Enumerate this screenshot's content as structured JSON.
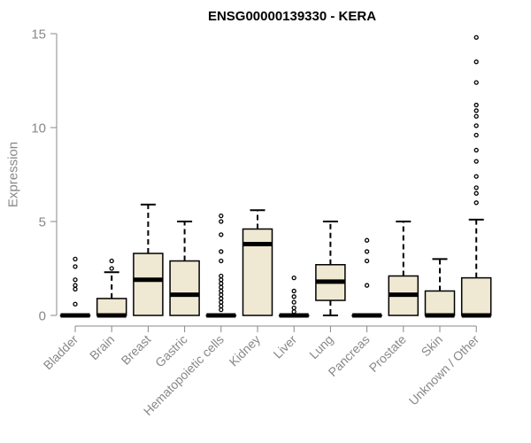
{
  "chart_data": {
    "type": "boxplot",
    "title": "ENSG00000139330 - KERA",
    "xlabel": "",
    "ylabel": "Expression",
    "ylim": [
      0,
      15
    ],
    "yticks": [
      0,
      5,
      10,
      15
    ],
    "grid": false,
    "box_fill": "#efe8d2",
    "categories": [
      {
        "name": "Bladder",
        "q1": 0,
        "median": 0,
        "q3": 0,
        "whisker_low": 0,
        "whisker_high": 0,
        "outliers": [
          0.6,
          1.4,
          1.6,
          1.9,
          2.6,
          3.0
        ]
      },
      {
        "name": "Brain",
        "q1": 0,
        "median": 0,
        "q3": 0.9,
        "whisker_low": 0,
        "whisker_high": 2.3,
        "outliers": [
          2.5,
          2.9
        ]
      },
      {
        "name": "Breast",
        "q1": 0,
        "median": 1.9,
        "q3": 3.3,
        "whisker_low": 0,
        "whisker_high": 5.9,
        "outliers": []
      },
      {
        "name": "Gastric",
        "q1": 0,
        "median": 1.1,
        "q3": 2.9,
        "whisker_low": 0,
        "whisker_high": 5.0,
        "outliers": []
      },
      {
        "name": "Hematopoietic cells",
        "q1": 0,
        "median": 0,
        "q3": 0,
        "whisker_low": 0,
        "whisker_high": 0,
        "outliers": [
          0.3,
          0.5,
          0.7,
          0.9,
          1.1,
          1.3,
          1.5,
          1.7,
          1.9,
          2.1,
          2.9,
          3.4,
          4.3,
          5.0,
          5.3
        ]
      },
      {
        "name": "Kidney",
        "q1": 0,
        "median": 3.8,
        "q3": 4.6,
        "whisker_low": 0,
        "whisker_high": 5.6,
        "outliers": []
      },
      {
        "name": "Liver",
        "q1": 0,
        "median": 0,
        "q3": 0,
        "whisker_low": 0,
        "whisker_high": 0,
        "outliers": [
          0.2,
          0.4,
          0.7,
          1.0,
          1.3,
          2.0
        ]
      },
      {
        "name": "Lung",
        "q1": 0.8,
        "median": 1.8,
        "q3": 2.7,
        "whisker_low": 0,
        "whisker_high": 5.0,
        "outliers": []
      },
      {
        "name": "Pancreas",
        "q1": 0,
        "median": 0,
        "q3": 0,
        "whisker_low": 0,
        "whisker_high": 0,
        "outliers": [
          1.6,
          2.9,
          3.4,
          4.0
        ]
      },
      {
        "name": "Prostate",
        "q1": 0,
        "median": 1.1,
        "q3": 2.1,
        "whisker_low": 0,
        "whisker_high": 5.0,
        "outliers": []
      },
      {
        "name": "Skin",
        "q1": 0,
        "median": 0,
        "q3": 1.3,
        "whisker_low": 0,
        "whisker_high": 3.0,
        "outliers": []
      },
      {
        "name": "Unknown / Other",
        "q1": 0,
        "median": 0,
        "q3": 2.0,
        "whisker_low": 0,
        "whisker_high": 5.1,
        "outliers": [
          6.0,
          6.5,
          6.8,
          7.4,
          8.2,
          8.8,
          9.6,
          10.1,
          10.6,
          10.9,
          11.2,
          12.4,
          13.5,
          14.8
        ]
      }
    ]
  }
}
